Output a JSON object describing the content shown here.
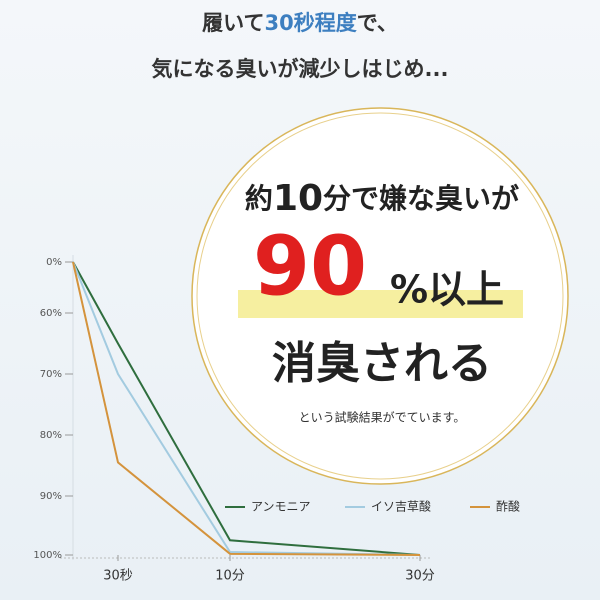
{
  "header": {
    "line1": [
      "履いて",
      "30秒程度",
      "で、"
    ],
    "line2": "気になる臭いが減少しはじめ..."
  },
  "callout": {
    "line1": [
      "約",
      "10",
      "分で嫌な臭いが"
    ],
    "percent": "90",
    "percent_suffix": "%以上",
    "line3": "消臭される",
    "note": "という試験結果がでています。"
  },
  "chart_data": {
    "type": "line",
    "categories": [
      null,
      "30秒",
      "10分",
      "30分"
    ],
    "series": [
      {
        "name": "アンモニア",
        "color": "#2f6e3e",
        "values": [
          0,
          65,
          97.5,
          100
        ]
      },
      {
        "name": "イソ吉草酸",
        "color": "#a3cbe0",
        "values": [
          0,
          70,
          99.5,
          100
        ]
      },
      {
        "name": "酢酸",
        "color": "#d4933c",
        "values": [
          0,
          84.5,
          99.8,
          100
        ]
      }
    ],
    "ylim": [
      0,
      100
    ],
    "yticks": [
      {
        "value": 0,
        "label": "0%"
      },
      {
        "value": 60,
        "label": "60%"
      },
      {
        "value": 70,
        "label": "70%"
      },
      {
        "value": 80,
        "label": "80%"
      },
      {
        "value": 90,
        "label": "90%"
      },
      {
        "value": 100,
        "label": "100%"
      }
    ],
    "legend": "bottom-right"
  }
}
